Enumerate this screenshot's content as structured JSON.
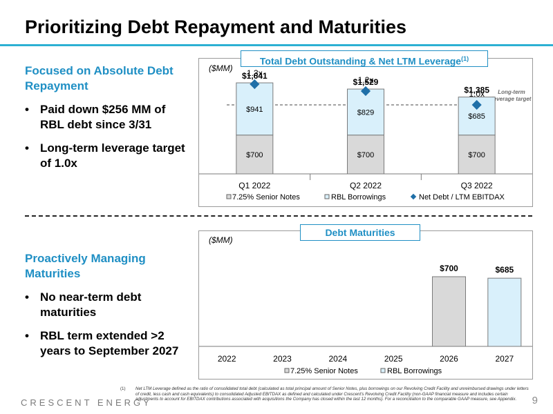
{
  "page": {
    "title": "Prioritizing Debt Repayment and Maturities",
    "brand": "CRESCENT ENERGY",
    "page_number": "9",
    "colors": {
      "accent": "#1f8fc4",
      "rule": "#2cb0d3",
      "senior": "#d9d9d9",
      "rbl": "#d9f0fb",
      "marker": "#1f6fa8"
    }
  },
  "left_top": {
    "heading": "Focused on Absolute Debt Repayment",
    "bullets": [
      "Paid down $256 MM of RBL debt since 3/31",
      "Long-term leverage target of 1.0x"
    ]
  },
  "left_bottom": {
    "heading": "Proactively Managing Maturities",
    "bullets": [
      "No near-term debt maturities",
      "RBL term extended >2 years to September 2027"
    ]
  },
  "footnote": {
    "marker": "(1)",
    "text": "Net LTM Leverage defined as the ratio of consolidated total debt (calculated as total principal amount of Senior Notes, plus borrowings on our Revolving Credit Facility and unreimbursed drawings under letters of credit, less cash and cash equivalents) to consolidated Adjusted EBITDAX as defined and calculated under Crescent's Revolving Credit Facility (non-GAAP financial measure and includes certain adjustments to account for EBITDAX contributions associated with acquisitions the Company has closed within the last 12 months). For a reconciliation to the comparable GAAP measure, see Appendix."
  },
  "chart_data": [
    {
      "type": "bar",
      "stacked": true,
      "title": "Total Debt Outstanding & Net LTM Leverage",
      "title_superscript": "(1)",
      "unit_label": "($MM)",
      "categories": [
        "Q1 2022",
        "Q2 2022",
        "Q3 2022"
      ],
      "series": [
        {
          "name": "7.25% Senior Notes",
          "values": [
            700,
            700,
            700
          ],
          "labels": [
            "$700",
            "$700",
            "$700"
          ],
          "color": "#d9d9d9"
        },
        {
          "name": "RBL Borrowings",
          "values": [
            941,
            829,
            685
          ],
          "labels": [
            "$941",
            "$829",
            "$685"
          ],
          "color": "#d9f0fb"
        }
      ],
      "totals": [
        1641,
        1529,
        1385
      ],
      "total_labels": [
        "$1,641",
        "$1,529",
        "$1,385"
      ],
      "leverage": {
        "name": "Net Debt / LTM EBITDAX",
        "values": [
          1.3,
          1.2,
          1.0
        ],
        "labels": [
          "1.3x",
          "1.2x",
          "1.0x"
        ],
        "marker": "diamond",
        "color": "#1f6fa8"
      },
      "target_line": {
        "value": 1.0,
        "label_line1": "Long-term",
        "label_line2": "leverage target"
      },
      "legend": [
        "7.25% Senior Notes",
        "RBL Borrowings",
        "Net Debt / LTM EBITDAX"
      ],
      "legend_position": "bottom",
      "grid": false
    },
    {
      "type": "bar",
      "title": "Debt Maturities",
      "unit_label": "($MM)",
      "categories": [
        "2022",
        "2023",
        "2024",
        "2025",
        "2026",
        "2027"
      ],
      "series": [
        {
          "name": "7.25% Senior Notes",
          "values": [
            0,
            0,
            0,
            0,
            700,
            0
          ],
          "labels": [
            "",
            "",
            "",
            "",
            "$700",
            ""
          ],
          "color": "#d9d9d9"
        },
        {
          "name": "RBL Borrowings",
          "values": [
            0,
            0,
            0,
            0,
            0,
            685
          ],
          "labels": [
            "",
            "",
            "",
            "",
            "",
            "$685"
          ],
          "color": "#d9f0fb"
        }
      ],
      "legend": [
        "7.25% Senior Notes",
        "RBL Borrowings"
      ],
      "legend_position": "bottom",
      "grid": false
    }
  ]
}
